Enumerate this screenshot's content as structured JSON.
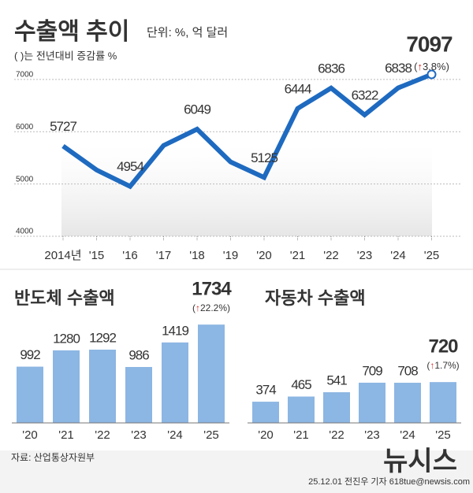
{
  "chart_data": [
    {
      "type": "line",
      "title": "수출액 추이",
      "subtitle": "단위: %, 억 달러",
      "note": "( )는 전년대비 증감률 %",
      "categories": [
        "2014년",
        "'15",
        "'16",
        "'17",
        "'18",
        "'19",
        "'20",
        "'21",
        "'22",
        "'23",
        "'24",
        "'25"
      ],
      "values": [
        5727,
        5268,
        4954,
        5737,
        6049,
        5422,
        5125,
        6444,
        6836,
        6322,
        6838,
        7097
      ],
      "value_labels": [
        "5727",
        null,
        "4954",
        null,
        "6049",
        null,
        "5125",
        "6444",
        "6836",
        "6322",
        "6838",
        "7097"
      ],
      "annotation": "(↑3.8%)",
      "color": "#1e6ac0",
      "ylim": [
        4000,
        7300
      ],
      "yticks": [
        4000,
        5000,
        6000,
        7000
      ],
      "grid": true
    },
    {
      "type": "bar",
      "title": "반도체 수출액",
      "categories": [
        "'20",
        "'21",
        "'22",
        "'23",
        "'24",
        "'25"
      ],
      "values": [
        992,
        1280,
        1292,
        986,
        1419,
        1734
      ],
      "annotation": "(↑22.2%)",
      "color": "#8cb6e3"
    },
    {
      "type": "bar",
      "title": "자동차 수출액",
      "categories": [
        "'20",
        "'21",
        "'22",
        "'23",
        "'24",
        "'25"
      ],
      "values": [
        374,
        465,
        541,
        709,
        708,
        720
      ],
      "annotation": "(↑1.7%)",
      "color": "#8cb6e3"
    }
  ],
  "source": "자료: 산업통상자원부",
  "credit": "25.12.01 전진우 기자 618tue@newsis.com",
  "watermark": "뉴시스"
}
